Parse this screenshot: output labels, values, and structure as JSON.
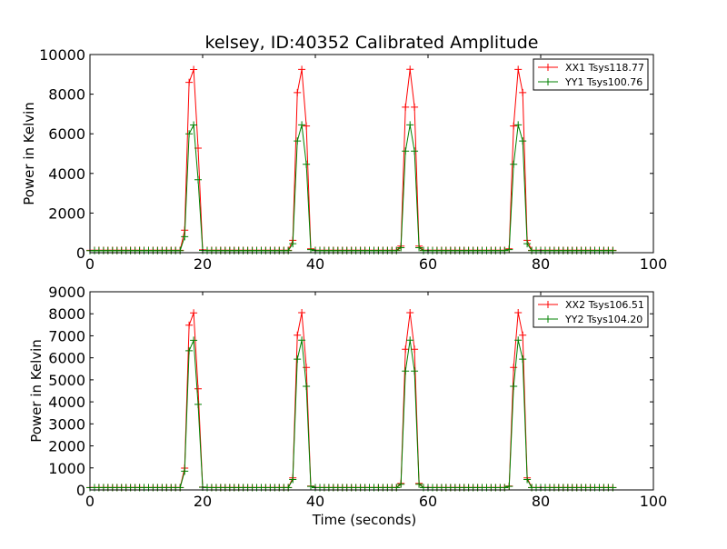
{
  "title": "kelsey, ID:40352 Calibrated Amplitude",
  "colors": {
    "series_a": "#ff0000",
    "series_b": "#008000"
  },
  "chart_data": [
    {
      "type": "line",
      "title": "kelsey, ID:40352 Calibrated Amplitude",
      "xlabel": "",
      "ylabel": "Power in Kelvin",
      "xlim": [
        0,
        100
      ],
      "ylim": [
        0,
        10000
      ],
      "xticks": [
        "0",
        "20",
        "40",
        "60",
        "80",
        "100"
      ],
      "yticks": [
        "0",
        "2000",
        "4000",
        "6000",
        "8000",
        "10000"
      ],
      "legend_position": "top-right",
      "grid": false,
      "marker": "+",
      "sampling": {
        "start": 0,
        "end": 93.2,
        "step": 0.8
      },
      "pulse_centers": [
        18.2,
        37.5,
        56.8,
        76.1
      ],
      "series": [
        {
          "name": "XX1 Tsys118.77",
          "color": "#ff0000",
          "baseline": 118.77,
          "peak": 9250
        },
        {
          "name": "YY1 Tsys100.76",
          "color": "#008000",
          "baseline": 100.76,
          "peak": 6450
        }
      ]
    },
    {
      "type": "line",
      "title": "",
      "xlabel": "Time (seconds)",
      "ylabel": "Power in Kelvin",
      "xlim": [
        0,
        100
      ],
      "ylim": [
        0,
        9000
      ],
      "xticks": [
        "0",
        "20",
        "40",
        "60",
        "80",
        "100"
      ],
      "yticks": [
        "0",
        "1000",
        "2000",
        "3000",
        "4000",
        "5000",
        "6000",
        "7000",
        "8000",
        "9000"
      ],
      "legend_position": "top-right",
      "grid": false,
      "marker": "+",
      "sampling": {
        "start": 0,
        "end": 93.2,
        "step": 0.8
      },
      "pulse_centers": [
        18.2,
        37.5,
        56.8,
        76.1
      ],
      "series": [
        {
          "name": "XX2 Tsys106.51",
          "color": "#ff0000",
          "baseline": 106.51,
          "peak": 8050
        },
        {
          "name": "YY2 Tsys104.20",
          "color": "#008000",
          "baseline": 104.2,
          "peak": 6800
        }
      ]
    }
  ]
}
